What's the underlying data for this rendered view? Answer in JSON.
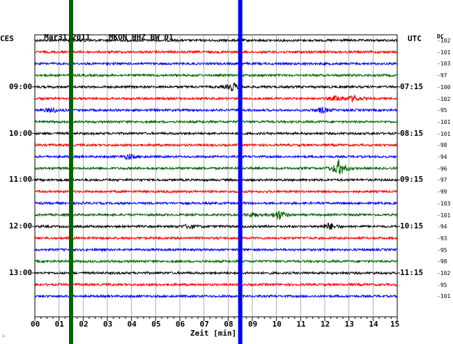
{
  "header": {
    "date": "Mar31,2011",
    "station": "MKON HHZ BW 01",
    "left_zone": "CES",
    "right_zone": "UTC",
    "dc_label": "DC",
    "x_axis_label": "Zeit [min]",
    "corner_mark": "⚔"
  },
  "chart_data": {
    "type": "line",
    "title": "Mar31,2011    MKON HHZ BW 01",
    "xlabel": "Zeit [min]",
    "xlim": [
      0,
      15
    ],
    "x_ticks": [
      "00",
      "01",
      "02",
      "03",
      "04",
      "05",
      "06",
      "07",
      "08",
      "09",
      "10",
      "11",
      "12",
      "13",
      "14",
      "15"
    ],
    "left_time_labels": [
      {
        "row": 4,
        "label": "09:00"
      },
      {
        "row": 8,
        "label": "10:00"
      },
      {
        "row": 12,
        "label": "11:00"
      },
      {
        "row": 16,
        "label": "12:00"
      },
      {
        "row": 20,
        "label": "13:00"
      }
    ],
    "right_time_labels": [
      {
        "row": 4,
        "label": "07:15"
      },
      {
        "row": 8,
        "label": "08:15"
      },
      {
        "row": 12,
        "label": "09:15"
      },
      {
        "row": 16,
        "label": "10:15"
      },
      {
        "row": 20,
        "label": "11:15"
      }
    ],
    "trace_colors": [
      "#000000",
      "#ff0000",
      "#0000ff",
      "#006400"
    ],
    "dc_offsets": [
      -102,
      -101,
      -103,
      -97,
      -100,
      -102,
      -95,
      -101,
      -101,
      -98,
      -94,
      -96,
      -97,
      -99,
      -103,
      -101,
      -94,
      -93,
      -95,
      -98,
      -102,
      -95,
      -101
    ],
    "events": [
      {
        "row": 4,
        "minute": 8.2,
        "amplitude": 6
      },
      {
        "row": 5,
        "minute": 13.2,
        "amplitude": 5
      },
      {
        "row": 5,
        "minute": 12.5,
        "amplitude": 4
      },
      {
        "row": 6,
        "minute": 0.7,
        "amplitude": 4
      },
      {
        "row": 6,
        "minute": 11.9,
        "amplitude": 4
      },
      {
        "row": 10,
        "minute": 3.9,
        "amplitude": 4
      },
      {
        "row": 11,
        "minute": 12.6,
        "amplitude": 12
      },
      {
        "row": 15,
        "minute": 9.0,
        "amplitude": 3
      },
      {
        "row": 15,
        "minute": 10.1,
        "amplitude": 7
      },
      {
        "row": 16,
        "minute": 12.2,
        "amplitude": 5
      },
      {
        "row": 16,
        "minute": 6.4,
        "amplitude": 3
      }
    ],
    "markers": [
      {
        "minute": 1.5,
        "color": "#006400"
      },
      {
        "minute": 8.5,
        "color": "#0000ff"
      }
    ]
  }
}
